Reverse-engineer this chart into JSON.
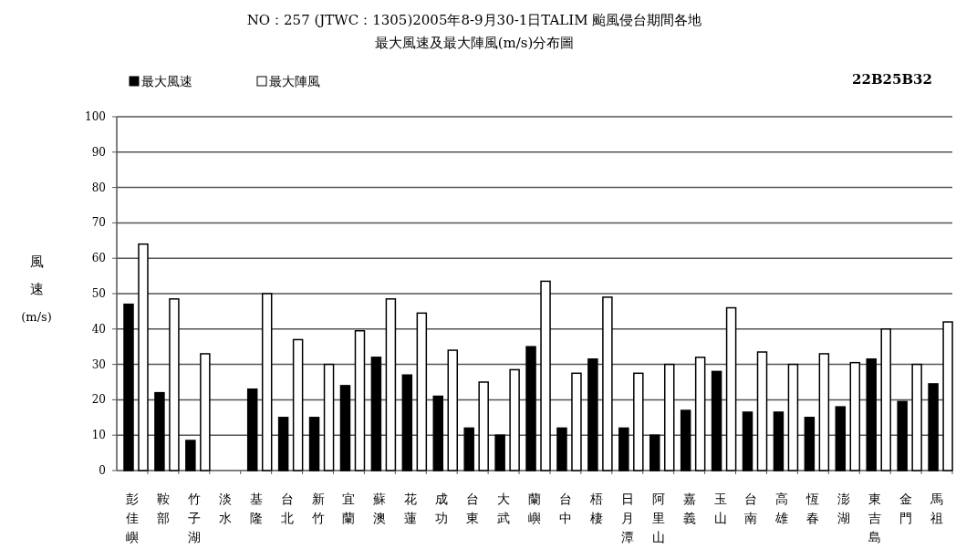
{
  "chart_data": {
    "type": "bar",
    "title": "NO：257 (JTWC：1305)2005年8-9月30-1日TALIM 颱風侵台期間各地",
    "subtitle": "最大風速及最大陣風(m/s)分布圖",
    "ylabel": "風速 (m/s)",
    "annotations": [
      "22B25B32"
    ],
    "categories": [
      "彭佳嶼",
      "鞍部",
      "竹子湖",
      "淡水",
      "基隆",
      "台北",
      "新竹",
      "宜蘭",
      "蘇澳",
      "花蓮",
      "成功",
      "台東",
      "大武",
      "蘭嶼",
      "台中",
      "梧棲",
      "日月潭",
      "阿里山",
      "嘉義",
      "玉山",
      "台南",
      "高雄",
      "恆春",
      "澎湖",
      "東吉島",
      "金門",
      "馬祖"
    ],
    "series": [
      {
        "name": "最大風速",
        "color": "#000000",
        "values": [
          47,
          22,
          8.5,
          null,
          23,
          15,
          15,
          24,
          32,
          27,
          21,
          12,
          10,
          35,
          12,
          31.5,
          12,
          10,
          17,
          28,
          16.5,
          16.5,
          15,
          18,
          31.5,
          19.5,
          24.5
        ]
      },
      {
        "name": "最大陣風",
        "color": "#ffffff",
        "values": [
          64,
          48.5,
          33,
          null,
          50,
          37,
          30,
          39.5,
          48.5,
          44.5,
          34,
          25,
          28.5,
          53.5,
          27.5,
          49,
          27.5,
          30,
          32,
          46,
          33.5,
          30,
          33,
          30.5,
          40,
          30,
          42
        ]
      }
    ],
    "ylim": [
      0,
      100
    ],
    "yticks": [
      0,
      10,
      20,
      30,
      40,
      50,
      60,
      70,
      80,
      90,
      100
    ],
    "grid": "y",
    "legend": "top left"
  }
}
